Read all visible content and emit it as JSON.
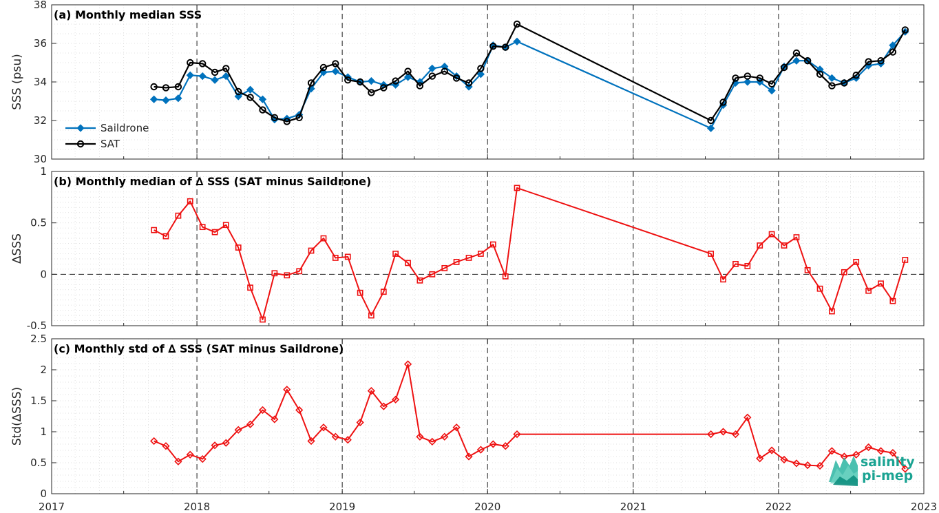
{
  "colors": {
    "saildrone": "#0072bd",
    "sat": "#000000",
    "delta": "#ee1111",
    "logo": "#1aa392"
  },
  "logo": {
    "line1": "salinity",
    "line2": "pi-mep"
  },
  "chart_data": [
    {
      "type": "line",
      "title": "(a) Monthly median SSS",
      "ylabel": "SSS (psu)",
      "ylim": [
        30,
        38
      ],
      "yticks": [
        "30",
        "32",
        "34",
        "36",
        "38"
      ],
      "xlim": [
        "2017-01-01",
        "2023-01-01"
      ],
      "xticks": [
        "2017",
        "2018",
        "2019",
        "2020",
        "2021",
        "2022",
        "2023"
      ],
      "legend_position": "bottom-left",
      "grid": "dotted minor grid; dashed vertical lines at each year start",
      "series": [
        {
          "name": "Saildrone",
          "marker": "diamond",
          "x": [
            "2017-09-15",
            "2017-10-15",
            "2017-11-15",
            "2017-12-15",
            "2018-01-15",
            "2018-02-15",
            "2018-03-15",
            "2018-04-15",
            "2018-05-15",
            "2018-06-15",
            "2018-07-15",
            "2018-08-15",
            "2018-09-15",
            "2018-10-15",
            "2018-11-15",
            "2018-12-15",
            "2019-01-15",
            "2019-02-15",
            "2019-03-15",
            "2019-04-15",
            "2019-05-15",
            "2019-06-15",
            "2019-07-15",
            "2019-08-15",
            "2019-09-15",
            "2019-10-15",
            "2019-11-15",
            "2019-12-15",
            "2020-01-15",
            "2020-02-15",
            "2020-03-15",
            "2021-07-15",
            "2021-08-15",
            "2021-09-15",
            "2021-10-15",
            "2021-11-15",
            "2021-12-15",
            "2022-01-15",
            "2022-02-15",
            "2022-03-15",
            "2022-04-15",
            "2022-05-15",
            "2022-06-15",
            "2022-07-15",
            "2022-08-15",
            "2022-09-15",
            "2022-10-15",
            "2022-11-15"
          ],
          "y": [
            33.1,
            33.05,
            33.15,
            34.35,
            34.3,
            34.1,
            34.3,
            33.25,
            33.6,
            33.1,
            32.05,
            32.1,
            32.3,
            33.65,
            34.5,
            34.55,
            34.25,
            34.0,
            34.05,
            33.85,
            33.85,
            34.25,
            34.0,
            34.7,
            34.8,
            34.3,
            33.75,
            34.4,
            35.9,
            35.8,
            36.1,
            31.6,
            32.8,
            33.95,
            34.0,
            34.0,
            33.55,
            34.8,
            35.1,
            35.1,
            34.65,
            34.2,
            33.95,
            34.2,
            34.85,
            34.95,
            35.9,
            36.6
          ]
        },
        {
          "name": "SAT",
          "marker": "circle",
          "x": [
            "2017-09-15",
            "2017-10-15",
            "2017-11-15",
            "2017-12-15",
            "2018-01-15",
            "2018-02-15",
            "2018-03-15",
            "2018-04-15",
            "2018-05-15",
            "2018-06-15",
            "2018-07-15",
            "2018-08-15",
            "2018-09-15",
            "2018-10-15",
            "2018-11-15",
            "2018-12-15",
            "2019-01-15",
            "2019-02-15",
            "2019-03-15",
            "2019-04-15",
            "2019-05-15",
            "2019-06-15",
            "2019-07-15",
            "2019-08-15",
            "2019-09-15",
            "2019-10-15",
            "2019-11-15",
            "2019-12-15",
            "2020-01-15",
            "2020-02-15",
            "2020-03-15",
            "2021-07-15",
            "2021-08-15",
            "2021-09-15",
            "2021-10-15",
            "2021-11-15",
            "2021-12-15",
            "2022-01-15",
            "2022-02-15",
            "2022-03-15",
            "2022-04-15",
            "2022-05-15",
            "2022-06-15",
            "2022-07-15",
            "2022-08-15",
            "2022-09-15",
            "2022-10-15",
            "2022-11-15"
          ],
          "y": [
            33.75,
            33.7,
            33.75,
            35.0,
            34.95,
            34.5,
            34.7,
            33.5,
            33.2,
            32.55,
            32.15,
            31.95,
            32.15,
            33.95,
            34.75,
            34.95,
            34.1,
            34.0,
            33.45,
            33.7,
            34.05,
            34.55,
            33.8,
            34.3,
            34.55,
            34.2,
            33.95,
            34.7,
            35.85,
            35.8,
            37.0,
            32.0,
            32.95,
            34.2,
            34.3,
            34.2,
            33.9,
            34.75,
            35.5,
            35.1,
            34.4,
            33.8,
            33.95,
            34.35,
            35.05,
            35.1,
            35.55,
            36.7
          ]
        }
      ]
    },
    {
      "type": "line",
      "title": "(b) Monthly median of ∆ SSS (SAT minus Saildrone)",
      "ylabel": "∆SSS",
      "ylim": [
        -0.5,
        1
      ],
      "yticks": [
        "-0.5",
        "0",
        "0.5",
        "1"
      ],
      "xlim": [
        "2017-01-01",
        "2023-01-01"
      ],
      "grid": "dotted minor grid; dashed zero line; dashed vertical lines at each year start",
      "series": [
        {
          "marker": "square",
          "x": [
            "2017-09-15",
            "2017-10-15",
            "2017-11-15",
            "2017-12-15",
            "2018-01-15",
            "2018-02-15",
            "2018-03-15",
            "2018-04-15",
            "2018-05-15",
            "2018-06-15",
            "2018-07-15",
            "2018-08-15",
            "2018-09-15",
            "2018-10-15",
            "2018-11-15",
            "2018-12-15",
            "2019-01-15",
            "2019-02-15",
            "2019-03-15",
            "2019-04-15",
            "2019-05-15",
            "2019-06-15",
            "2019-07-15",
            "2019-08-15",
            "2019-09-15",
            "2019-10-15",
            "2019-11-15",
            "2019-12-15",
            "2020-01-15",
            "2020-02-15",
            "2020-03-15",
            "2021-07-15",
            "2021-08-15",
            "2021-09-15",
            "2021-10-15",
            "2021-11-15",
            "2021-12-15",
            "2022-01-15",
            "2022-02-15",
            "2022-03-15",
            "2022-04-15",
            "2022-05-15",
            "2022-06-15",
            "2022-07-15",
            "2022-08-15",
            "2022-09-15",
            "2022-10-15",
            "2022-11-15"
          ],
          "y": [
            0.43,
            0.37,
            0.57,
            0.71,
            0.46,
            0.41,
            0.48,
            0.26,
            -0.13,
            -0.44,
            0.01,
            -0.01,
            0.03,
            0.23,
            0.35,
            0.16,
            0.17,
            -0.18,
            -0.4,
            -0.17,
            0.2,
            0.11,
            -0.06,
            0.0,
            0.06,
            0.12,
            0.16,
            0.2,
            0.29,
            -0.02,
            0.84,
            0.2,
            -0.05,
            0.1,
            0.08,
            0.28,
            0.39,
            0.28,
            0.36,
            0.04,
            -0.14,
            -0.36,
            0.02,
            0.12,
            -0.16,
            -0.09,
            -0.26,
            0.14
          ]
        }
      ]
    },
    {
      "type": "line",
      "title": "(c) Monthly std of ∆ SSS (SAT minus Saildrone)",
      "ylabel": "Std(∆SSS)",
      "ylim": [
        0,
        2.5
      ],
      "yticks": [
        "0",
        "0.5",
        "1",
        "1.5",
        "2",
        "2.5"
      ],
      "xlim": [
        "2017-01-01",
        "2023-01-01"
      ],
      "xticks": [
        "2017",
        "2018",
        "2019",
        "2020",
        "2021",
        "2022",
        "2023"
      ],
      "grid": "dotted minor grid; dashed vertical lines at each year start",
      "series": [
        {
          "marker": "diamond",
          "x": [
            "2017-09-15",
            "2017-10-15",
            "2017-11-15",
            "2017-12-15",
            "2018-01-15",
            "2018-02-15",
            "2018-03-15",
            "2018-04-15",
            "2018-05-15",
            "2018-06-15",
            "2018-07-15",
            "2018-08-15",
            "2018-09-15",
            "2018-10-15",
            "2018-11-15",
            "2018-12-15",
            "2019-01-15",
            "2019-02-15",
            "2019-03-15",
            "2019-04-15",
            "2019-05-15",
            "2019-06-15",
            "2019-07-15",
            "2019-08-15",
            "2019-09-15",
            "2019-10-15",
            "2019-11-15",
            "2019-12-15",
            "2020-01-15",
            "2020-02-15",
            "2020-03-15",
            "2021-07-15",
            "2021-08-15",
            "2021-09-15",
            "2021-10-15",
            "2021-11-15",
            "2021-12-15",
            "2022-01-15",
            "2022-02-15",
            "2022-03-15",
            "2022-04-15",
            "2022-05-15",
            "2022-06-15",
            "2022-07-15",
            "2022-08-15",
            "2022-09-15",
            "2022-10-15",
            "2022-11-15"
          ],
          "y": [
            0.85,
            0.77,
            0.52,
            0.63,
            0.56,
            0.78,
            0.82,
            1.03,
            1.12,
            1.35,
            1.2,
            1.68,
            1.35,
            0.85,
            1.07,
            0.92,
            0.87,
            1.15,
            1.66,
            1.41,
            1.52,
            2.09,
            0.92,
            0.84,
            0.92,
            1.07,
            0.6,
            0.71,
            0.8,
            0.77,
            0.96,
            0.96,
            1.0,
            0.96,
            1.23,
            0.57,
            0.7,
            0.55,
            0.49,
            0.46,
            0.45,
            0.69,
            0.6,
            0.63,
            0.75,
            0.69,
            0.66,
            0.4
          ]
        }
      ]
    }
  ]
}
